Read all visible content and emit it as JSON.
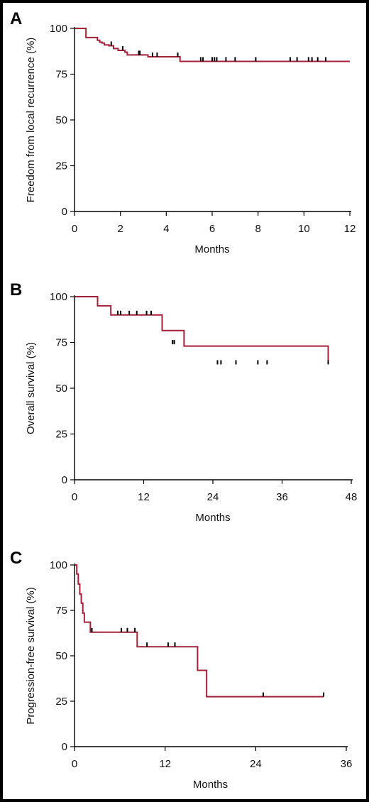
{
  "colors": {
    "background": "#000000",
    "panel": "#ffffff",
    "curve": "#a3203a",
    "censor": "#000000"
  },
  "chart_data": [
    {
      "type": "line",
      "step": true,
      "panel_label": "A",
      "xlabel": "Months",
      "ylabel": "Freedom from local recurrence (%)",
      "xlim": [
        0,
        12
      ],
      "ylim": [
        0,
        100
      ],
      "x_ticks": [
        0,
        2,
        4,
        6,
        8,
        10,
        12
      ],
      "y_ticks": [
        0,
        25,
        50,
        75,
        100
      ],
      "grid": false,
      "legend": "none",
      "series": [
        {
          "x": [
            0,
            0.4,
            0.5,
            0.9,
            1.0,
            1.1,
            1.2,
            1.3,
            1.5,
            1.7,
            1.9,
            2.2,
            2.3,
            3.2,
            4.6,
            12
          ],
          "y": [
            100,
            100,
            95,
            95,
            93.5,
            92.5,
            92,
            91,
            90.5,
            89,
            88,
            87,
            85.5,
            84.5,
            82,
            82
          ]
        }
      ],
      "censored": [
        {
          "x": 1.6,
          "y": 90.5
        },
        {
          "x": 2.1,
          "y": 88
        },
        {
          "x": 2.8,
          "y": 85.5
        },
        {
          "x": 2.85,
          "y": 85.5
        },
        {
          "x": 3.4,
          "y": 84.5
        },
        {
          "x": 3.6,
          "y": 84.5
        },
        {
          "x": 4.5,
          "y": 84.5
        },
        {
          "x": 5.5,
          "y": 82
        },
        {
          "x": 5.6,
          "y": 82
        },
        {
          "x": 6.0,
          "y": 82
        },
        {
          "x": 6.1,
          "y": 82
        },
        {
          "x": 6.2,
          "y": 82
        },
        {
          "x": 6.6,
          "y": 82
        },
        {
          "x": 7.0,
          "y": 82
        },
        {
          "x": 7.9,
          "y": 82
        },
        {
          "x": 9.4,
          "y": 82
        },
        {
          "x": 9.7,
          "y": 82
        },
        {
          "x": 10.2,
          "y": 82
        },
        {
          "x": 10.35,
          "y": 82
        },
        {
          "x": 10.6,
          "y": 82
        },
        {
          "x": 10.95,
          "y": 82
        }
      ]
    },
    {
      "type": "line",
      "step": true,
      "panel_label": "B",
      "xlabel": "Months",
      "ylabel": "Overall survival (%)",
      "xlim": [
        0,
        48
      ],
      "ylim": [
        0,
        100
      ],
      "x_ticks": [
        0,
        12,
        24,
        36,
        48
      ],
      "y_ticks": [
        0,
        25,
        50,
        75,
        100
      ],
      "grid": false,
      "legend": "none",
      "series": [
        {
          "x": [
            0,
            4,
            6.3,
            14.8,
            15.2,
            19,
            44
          ],
          "y": [
            100,
            95,
            90,
            90,
            81.5,
            73,
            63
          ]
        }
      ],
      "censored": [
        {
          "x": 7.5,
          "y": 90
        },
        {
          "x": 8.0,
          "y": 90
        },
        {
          "x": 9.5,
          "y": 90
        },
        {
          "x": 10.8,
          "y": 90
        },
        {
          "x": 12.5,
          "y": 90
        },
        {
          "x": 13.3,
          "y": 90
        },
        {
          "x": 17.0,
          "y": 74
        },
        {
          "x": 17.3,
          "y": 74
        },
        {
          "x": 24.8,
          "y": 63
        },
        {
          "x": 25.4,
          "y": 63
        },
        {
          "x": 28.0,
          "y": 63
        },
        {
          "x": 31.8,
          "y": 63
        },
        {
          "x": 33.4,
          "y": 63
        },
        {
          "x": 44.0,
          "y": 63
        }
      ]
    },
    {
      "type": "line",
      "step": true,
      "panel_label": "C",
      "xlabel": "Months",
      "ylabel": "Progression-free survival (%)",
      "xlim": [
        0,
        36
      ],
      "ylim": [
        0,
        100
      ],
      "x_ticks": [
        0,
        12,
        24,
        36
      ],
      "y_ticks": [
        0,
        25,
        50,
        75,
        100
      ],
      "grid": false,
      "legend": "none",
      "series": [
        {
          "x": [
            0,
            0.3,
            0.5,
            0.7,
            0.9,
            1.1,
            1.3,
            2.1,
            8.3,
            16.3,
            17.5,
            33
          ],
          "y": [
            100,
            95,
            89.5,
            84,
            79,
            73.5,
            68.5,
            63,
            55,
            42,
            27.5,
            27.5
          ]
        }
      ],
      "censored": [
        {
          "x": 2.3,
          "y": 63
        },
        {
          "x": 6.2,
          "y": 63
        },
        {
          "x": 7.0,
          "y": 63
        },
        {
          "x": 8.0,
          "y": 63
        },
        {
          "x": 9.6,
          "y": 55
        },
        {
          "x": 12.4,
          "y": 55
        },
        {
          "x": 13.3,
          "y": 55
        },
        {
          "x": 25.0,
          "y": 27.5
        },
        {
          "x": 33.0,
          "y": 27.5
        }
      ]
    }
  ]
}
